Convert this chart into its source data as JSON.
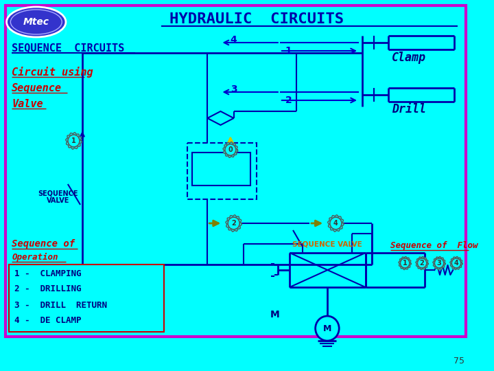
{
  "bg_color": "#00FFFF",
  "border_color": "#CC00CC",
  "title": "HYDRAULIC  CIRCUITS",
  "title_color": "#0000AA",
  "seq_circuits_color": "#0000AA",
  "circuit_using_color": "#CC0000",
  "text_blue": "#0000CC",
  "text_red": "#CC0000",
  "text_dark": "#000080",
  "page_num": "75",
  "logo_fill": "#3333CC",
  "clamp_label": "Clamp",
  "drill_label": "Drill",
  "seq_valve_label2": "SEQUENCE VALVE",
  "seq_of_flow_label": "Sequence of  Flow",
  "operations": [
    "1 -  CLAMPING",
    "2 -  DRILLING",
    "3 -  DRILL  RETURN",
    "4 -  DE CLAMP"
  ],
  "arrow_color": "#0000CC",
  "circuit_line_color": "#0000AA",
  "olive_arrow_color": "#808000"
}
